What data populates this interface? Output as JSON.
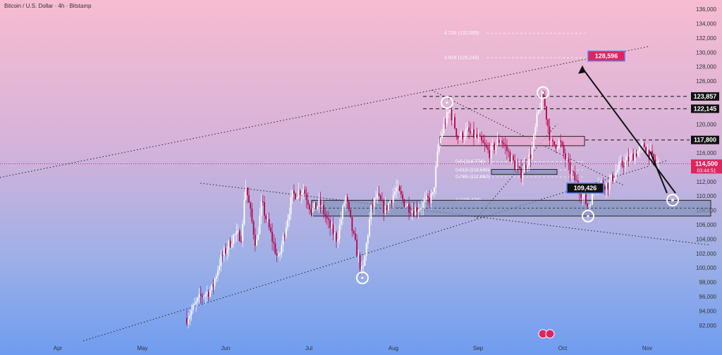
{
  "chart_data": {
    "type": "line",
    "title": "Bitcoin / U.S. Dollar · 4h · Bitstamp",
    "x_labels": [
      "Apr",
      "May",
      "Jun",
      "Jul",
      "Aug",
      "Sep",
      "Oct",
      "Nov"
    ],
    "y_ticks": [
      "92,000",
      "94,000",
      "96,000",
      "98,000",
      "100,000",
      "102,000",
      "104,000",
      "106,000",
      "108,000",
      "110,000",
      "112,000",
      "114,000",
      "116,000",
      "118,000",
      "120,000",
      "122,000",
      "124,000",
      "126,000",
      "128,000",
      "130,000",
      "132,000",
      "134,000",
      "136,000"
    ],
    "ylim": [
      91000,
      136500
    ],
    "series": [
      {
        "values": [
          [
            4.6,
            93
          ],
          [
            5.1,
            96
          ],
          [
            5.5,
            97
          ],
          [
            5.8,
            101
          ],
          [
            6.3,
            104.5
          ],
          [
            6.6,
            104.5
          ],
          [
            6.7,
            112
          ],
          [
            7.1,
            103
          ],
          [
            7.3,
            109
          ],
          [
            7.6,
            105
          ],
          [
            7.9,
            101
          ],
          [
            8.4,
            110
          ],
          [
            8.8,
            111
          ],
          [
            9.1,
            108
          ],
          [
            9.4,
            109
          ],
          [
            9.7,
            106
          ],
          [
            10.0,
            104
          ],
          [
            10.3,
            110
          ],
          [
            10.6,
            104
          ],
          [
            10.9,
            99
          ],
          [
            11.2,
            108
          ],
          [
            11.4,
            110
          ],
          [
            11.7,
            108
          ],
          [
            12.1,
            111
          ],
          [
            12.4,
            109
          ],
          [
            12.7,
            108
          ],
          [
            13.1,
            109
          ],
          [
            13.4,
            110
          ],
          [
            13.6,
            117
          ],
          [
            13.8,
            120
          ],
          [
            14.0,
            122
          ],
          [
            14.3,
            118
          ],
          [
            14.6,
            119
          ],
          [
            15.0,
            118
          ],
          [
            15.4,
            116
          ],
          [
            15.8,
            118
          ],
          [
            16.2,
            115
          ],
          [
            16.5,
            113
          ],
          [
            16.9,
            116
          ],
          [
            17.1,
            121
          ],
          [
            17.3,
            124
          ],
          [
            17.6,
            117
          ],
          [
            17.9,
            117.5
          ],
          [
            18.2,
            114
          ],
          [
            18.6,
            111
          ],
          [
            18.9,
            108.5
          ],
          [
            19.2,
            112
          ],
          [
            19.6,
            111.5
          ],
          [
            20.0,
            114
          ],
          [
            20.3,
            115
          ],
          [
            20.6,
            116
          ],
          [
            20.9,
            117
          ],
          [
            21.2,
            115
          ],
          [
            21.4,
            114.5
          ]
        ]
      }
    ],
    "levels": [
      {
        "label": "123,857",
        "value": 123857
      },
      {
        "label": "122,145",
        "value": 122145
      },
      {
        "label": "117,800",
        "value": 117800
      }
    ],
    "fib_levels": [
      {
        "label": "4.236 (132,665)",
        "value": 132665
      },
      {
        "label": "3.618 (129,248)",
        "value": 129248
      },
      {
        "label": "0.5 (114,774)",
        "value": 114774
      },
      {
        "label": "0.618 (113,590)",
        "value": 113590
      },
      {
        "label": "0.786 (112,662)",
        "value": 112662
      },
      {
        "label": "1 (109,426)",
        "value": 109426
      }
    ],
    "current_price": {
      "label": "114,500",
      "countdown": "03:44:51",
      "value": 114500
    },
    "target": {
      "label": "128,596",
      "value": 128596
    },
    "support": {
      "label": "109,426",
      "value": 109426
    },
    "colors": {
      "candle_up": "#ffffff",
      "candle_down": "#b8004a",
      "target_box": "#e0245e",
      "level_box": "#111111",
      "zone_fill": "#7f8fb8"
    }
  }
}
